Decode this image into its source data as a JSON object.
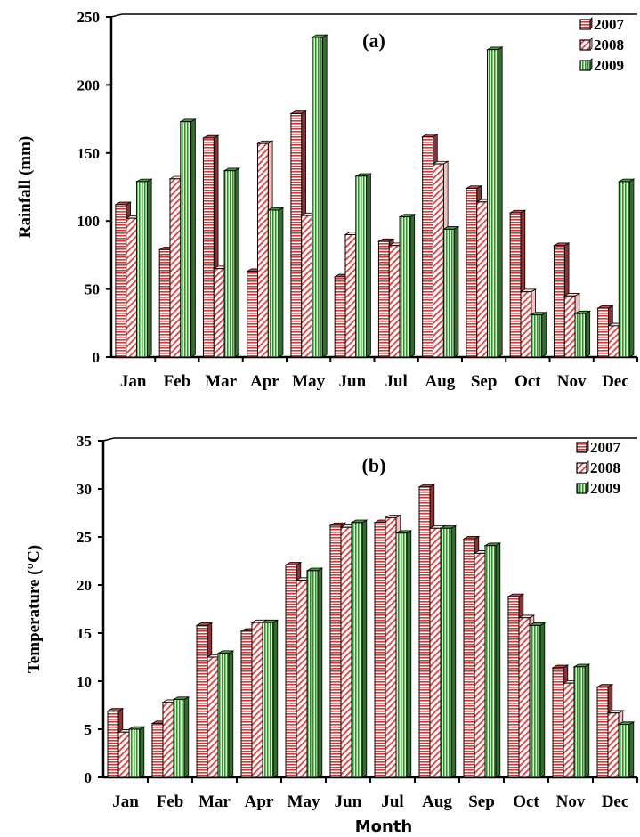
{
  "chart_data": [
    {
      "type": "bar",
      "panel_label": "(a)",
      "ylabel": "Rainfall (mm)",
      "xlabel": "",
      "ylim": [
        0,
        250
      ],
      "yticks": [
        0,
        50,
        100,
        150,
        200,
        250
      ],
      "legend_position": "top-right",
      "categories": [
        "Jan",
        "Feb",
        "Mar",
        "Apr",
        "May",
        "Jun",
        "Jul",
        "Aug",
        "Sep",
        "Oct",
        "Nov",
        "Dec"
      ],
      "series": [
        {
          "name": "2007",
          "color": "#e05858",
          "values": [
            112,
            79,
            161,
            63,
            179,
            59,
            85,
            162,
            124,
            106,
            82,
            36
          ]
        },
        {
          "name": "2008",
          "color": "#ffffff",
          "values": [
            102,
            131,
            65,
            157,
            104,
            90,
            82,
            142,
            114,
            48,
            45,
            23
          ]
        },
        {
          "name": "2009",
          "color": "#58b050",
          "values": [
            129,
            173,
            137,
            108,
            235,
            133,
            103,
            94,
            226,
            31,
            32,
            129
          ]
        }
      ]
    },
    {
      "type": "bar",
      "panel_label": "(b)",
      "ylabel": "Temperature (°C)",
      "xlabel": "Month",
      "ylim": [
        0,
        35
      ],
      "yticks": [
        0,
        5,
        10,
        15,
        20,
        25,
        30,
        35
      ],
      "legend_position": "top-right",
      "categories": [
        "Jan",
        "Feb",
        "Mar",
        "Apr",
        "May",
        "Jun",
        "Jul",
        "Aug",
        "Sep",
        "Oct",
        "Nov",
        "Dec"
      ],
      "series": [
        {
          "name": "2007",
          "color": "#e05858",
          "values": [
            6.9,
            5.6,
            15.8,
            15.2,
            22.1,
            26.2,
            26.5,
            30.2,
            24.8,
            18.8,
            11.4,
            9.4
          ]
        },
        {
          "name": "2008",
          "color": "#ffffff",
          "values": [
            4.7,
            7.8,
            12.5,
            16.1,
            20.5,
            26.0,
            27.0,
            25.9,
            23.3,
            16.6,
            9.8,
            6.7
          ]
        },
        {
          "name": "2009",
          "color": "#58b050",
          "values": [
            5.0,
            8.1,
            12.9,
            16.1,
            21.5,
            26.5,
            25.4,
            25.9,
            24.1,
            15.8,
            11.5,
            5.5
          ]
        }
      ]
    }
  ]
}
